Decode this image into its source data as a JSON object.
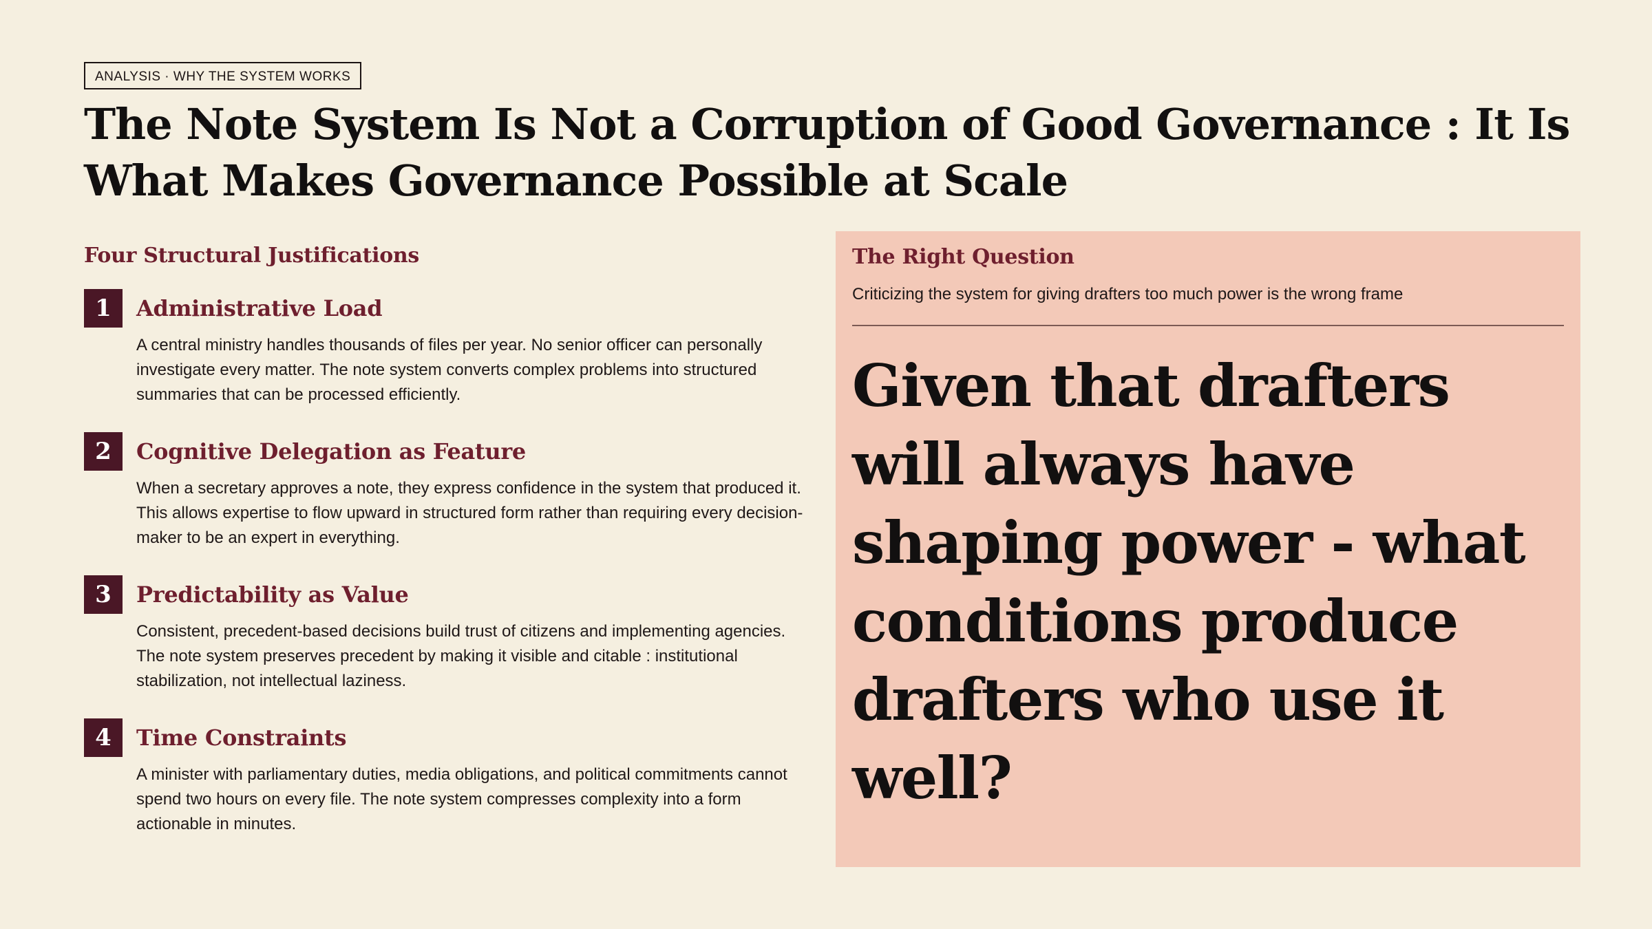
{
  "tag": "ANALYSIS · WHY THE SYSTEM WORKS",
  "title": "The Note System Is Not a Corruption of Good Governance : It Is What Makes Governance Possible at Scale",
  "left": {
    "heading": "Four Structural Justifications",
    "items": [
      {
        "number": "1",
        "title": "Administrative Load",
        "body": "A central ministry handles thousands of files per year. No senior officer can personally investigate every matter. The note system converts complex problems into structured summaries that can be processed efficiently."
      },
      {
        "number": "2",
        "title": "Cognitive Delegation as Feature",
        "body": "When a secretary approves a note, they express confidence in the system that produced it. This allows expertise to flow upward in structured form rather than requiring every decision-maker to be an expert in everything."
      },
      {
        "number": "3",
        "title": "Predictability as Value",
        "body": "Consistent, precedent-based decisions build trust of citizens and implementing agencies. The note system preserves precedent by making it visible and citable : institutional stabilization, not intellectual laziness."
      },
      {
        "number": "4",
        "title": "Time Constraints",
        "body": "A minister with parliamentary duties, media obligations, and political commitments cannot spend two hours on every file. The note system compresses complexity into a form actionable in minutes."
      }
    ]
  },
  "panel": {
    "heading": "The Right Question",
    "subtitle": "Criticizing the system for giving drafters too much power is the wrong frame",
    "quote": "Given that drafters will always have shaping power - what conditions produce drafters who use it well?"
  },
  "colors": {
    "background": "#f5efe0",
    "accent": "#6e1f2e",
    "number_box": "#4a1726",
    "panel": "#f3c9b8"
  }
}
